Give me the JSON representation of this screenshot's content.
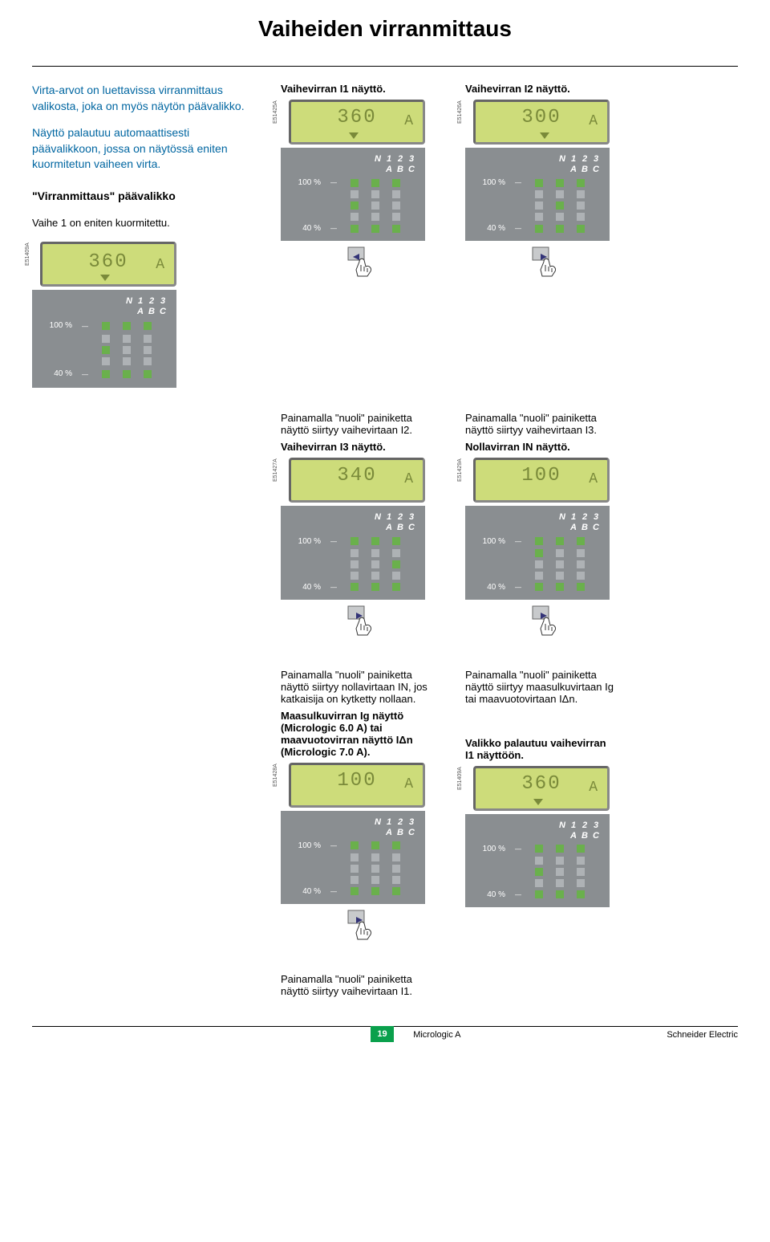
{
  "title": "Vaiheiden virranmittaus",
  "intro": {
    "p1": "Virta-arvot on luettavissa virranmittaus valikosta, joka on myös näytön päävalikko.",
    "p2": "Näyttö palautuu automaattisesti päävalikkoon, jossa on näytössä eniten kuormitetun vaiheen virta."
  },
  "main_label": {
    "line1": "\"Virranmittaus\" päävalikko",
    "line2": "Vaihe 1 on eniten kuormitettu."
  },
  "panel_header": {
    "row1": [
      "N",
      "1",
      "2",
      "3"
    ],
    "row2": [
      "",
      "A",
      "B",
      "C"
    ]
  },
  "pct100": "100 %",
  "pct40": "40 %",
  "modules": {
    "main": {
      "code": "E51409A",
      "val": "360",
      "unit": "A",
      "tri": "left",
      "cols_on": [
        false,
        true,
        true,
        true
      ],
      "rows": [
        [
          1,
          1,
          1
        ],
        [
          0,
          0,
          0
        ],
        [
          1,
          0,
          0
        ],
        [
          0,
          0,
          0
        ],
        [
          1,
          1,
          1
        ]
      ]
    },
    "i1": {
      "code": "E51425A",
      "val": "360",
      "unit": "A",
      "tri": "left",
      "hand": "left",
      "rows": [
        [
          1,
          1,
          1
        ],
        [
          0,
          0,
          0
        ],
        [
          1,
          0,
          0
        ],
        [
          0,
          0,
          0
        ],
        [
          1,
          1,
          1
        ]
      ]
    },
    "i2": {
      "code": "E51426A",
      "val": "300",
      "unit": "A",
      "tri": "center",
      "hand": "right",
      "rows": [
        [
          1,
          1,
          1
        ],
        [
          0,
          0,
          0
        ],
        [
          0,
          1,
          0
        ],
        [
          0,
          0,
          0
        ],
        [
          1,
          1,
          1
        ]
      ]
    },
    "i3": {
      "code": "E51427A",
      "val": "340",
      "unit": "A",
      "tri": "none",
      "hand": "right",
      "rows": [
        [
          1,
          1,
          1
        ],
        [
          0,
          0,
          0
        ],
        [
          0,
          0,
          1
        ],
        [
          0,
          0,
          0
        ],
        [
          1,
          1,
          1
        ]
      ]
    },
    "in": {
      "code": "E51429A",
      "val": "100",
      "unit": "A",
      "tri": "none",
      "hand": "right",
      "rows": [
        [
          1,
          1,
          1
        ],
        [
          1,
          0,
          0
        ],
        [
          0,
          0,
          0
        ],
        [
          0,
          0,
          0
        ],
        [
          1,
          1,
          1
        ]
      ]
    },
    "ig": {
      "code": "E51428A",
      "val": "100",
      "unit": "A",
      "tri": "none",
      "hand": "right",
      "rows": [
        [
          1,
          1,
          1
        ],
        [
          0,
          0,
          0
        ],
        [
          0,
          0,
          0
        ],
        [
          0,
          0,
          0
        ],
        [
          1,
          1,
          1
        ]
      ]
    },
    "ret": {
      "code": "E51409A",
      "val": "360",
      "unit": "A",
      "tri": "left",
      "hand": "none",
      "rows": [
        [
          1,
          1,
          1
        ],
        [
          0,
          0,
          0
        ],
        [
          1,
          0,
          0
        ],
        [
          0,
          0,
          0
        ],
        [
          1,
          1,
          1
        ]
      ]
    }
  },
  "labels": {
    "i1_title": "Vaihevirran I1 näyttö.",
    "i2_title": "Vaihevirran I2 näyttö.",
    "i3_title": "Vaihevirran I3 näyttö.",
    "in_title": "Nollavirran IN näyttö.",
    "press_i2": "Painamalla \"nuoli\" painiketta näyttö siirtyy vaihevirtaan I2.",
    "press_i3": "Painamalla \"nuoli\" painiketta näyttö siirtyy vaihevirtaan I3.",
    "press_in": "Painamalla \"nuoli\" painiketta näyttö siirtyy nollavirtaan IN, jos katkaisija on kytketty nollaan.",
    "press_ig": "Painamalla \"nuoli\" painiketta näyttö siirtyy maasulkuvirtaan Ig tai maavuotovirtaan IΔn.",
    "ig_title": "Maasulkuvirran Ig näyttö (Micrologic 6.0 A) tai maavuotovirran näyttö IΔn (Micrologic 7.0 A).",
    "ret_title": "Valikko palautuu vaihevirran I1 näyttöön.",
    "press_i1": "Painamalla \"nuoli\" painiketta näyttö siirtyy vaihevirtaan I1."
  },
  "footer": {
    "page": "19",
    "mid": "Micrologic A",
    "right": "Schneider Electric"
  },
  "colors": {
    "intro": "#0066a1",
    "lcd_bg": "#cddc7a",
    "lcd_fg": "#7a8a3a",
    "panel": "#8a8e91",
    "led_on": "#6ab04c",
    "led_off": "#aeb2b5",
    "page_bg": "#0aa04c"
  }
}
